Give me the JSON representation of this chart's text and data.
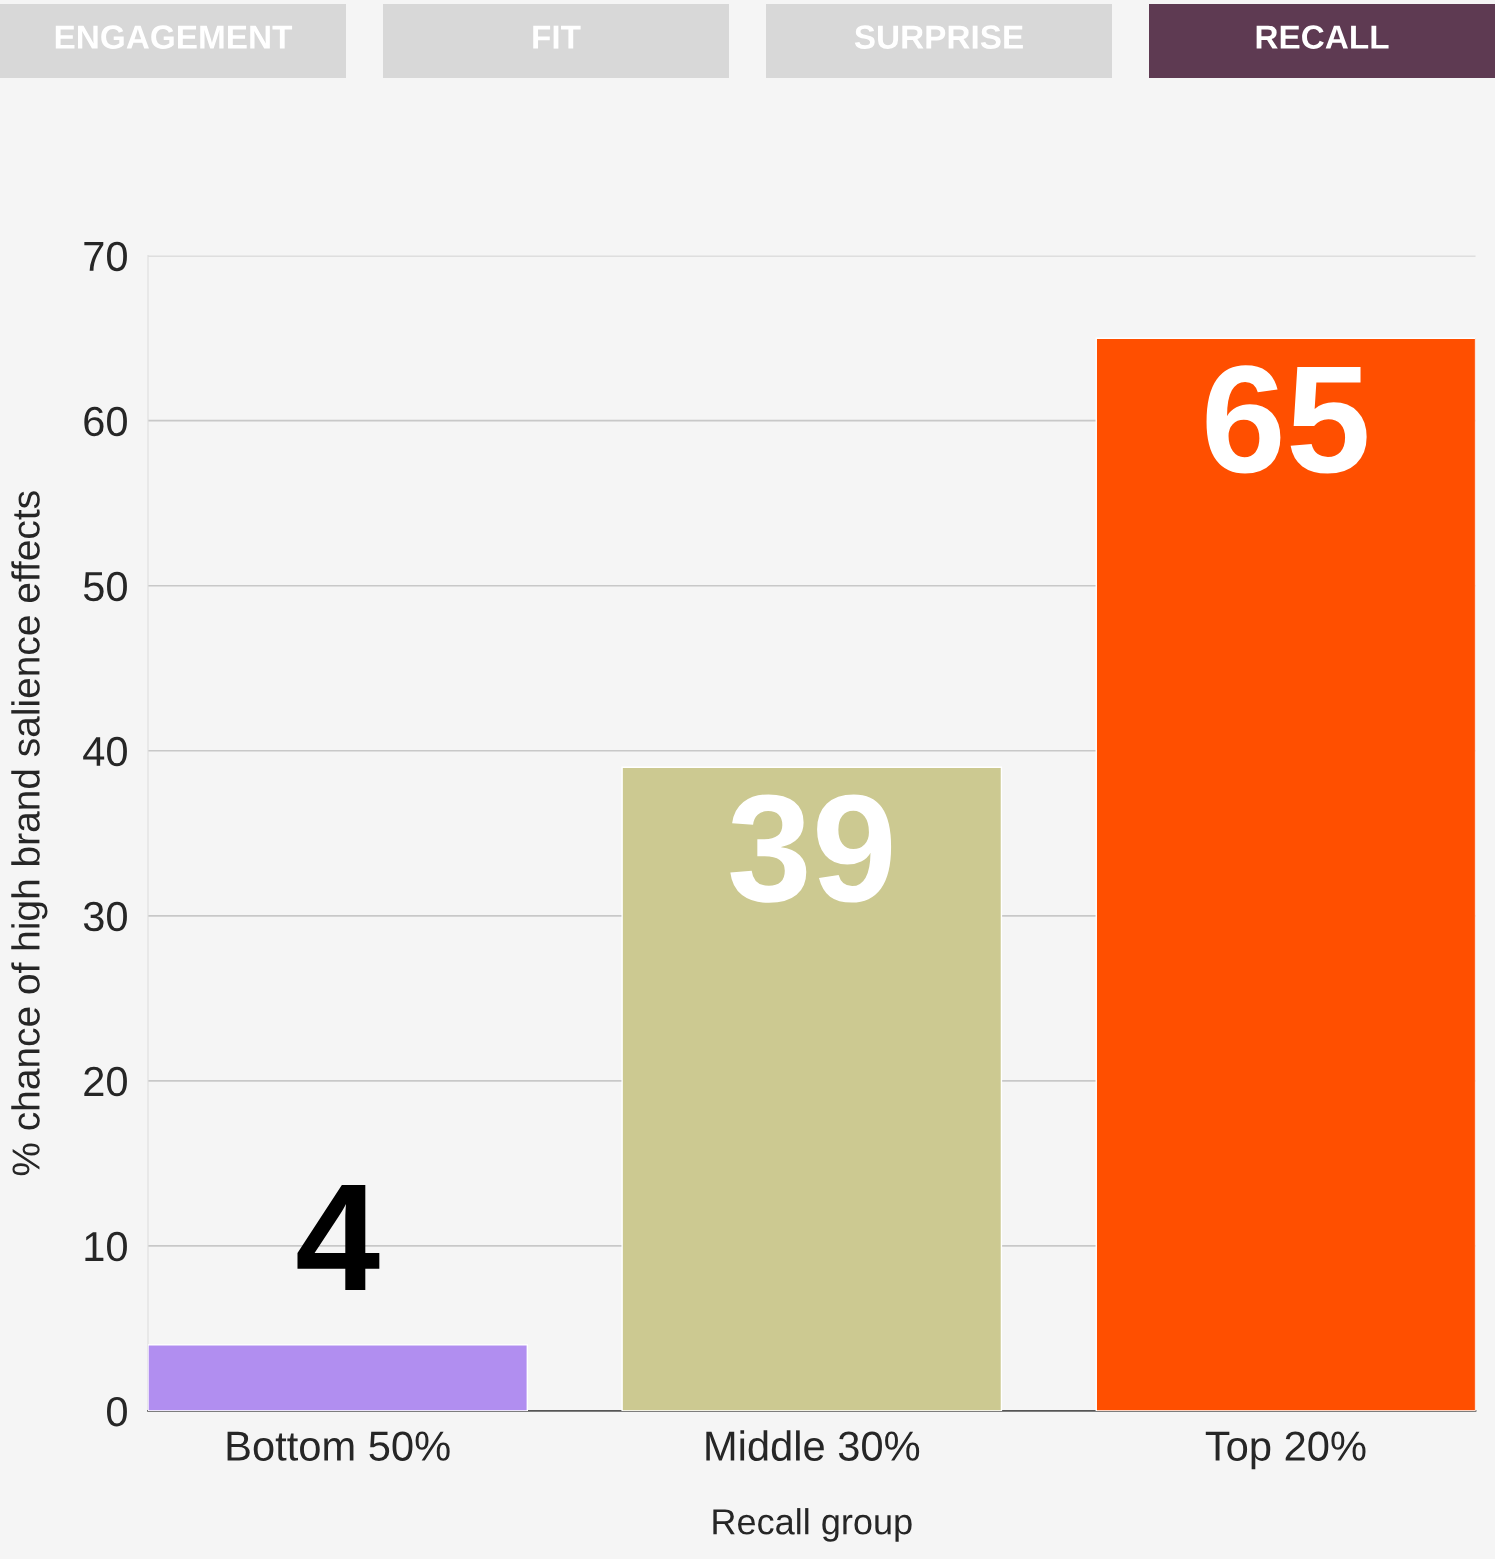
{
  "chart_data": {
    "type": "bar",
    "annotations": [
      "ENGAGEMENT",
      "FIT",
      "SURPRISE",
      "RECALL"
    ],
    "xlabel": "Recall group",
    "ylabel": "% chance of high brand salience effects",
    "categories": [
      "Bottom 50%",
      "Middle 30%",
      "Top 20%"
    ],
    "values": [
      4,
      39,
      65
    ],
    "colors": [
      "#b18ef0",
      "#ccc991",
      "#ff4f00"
    ],
    "ylim": [
      0,
      70
    ],
    "yticks": [
      0,
      10,
      20,
      30,
      40,
      50,
      60,
      70
    ],
    "grid": "y",
    "data_labels": true
  }
}
